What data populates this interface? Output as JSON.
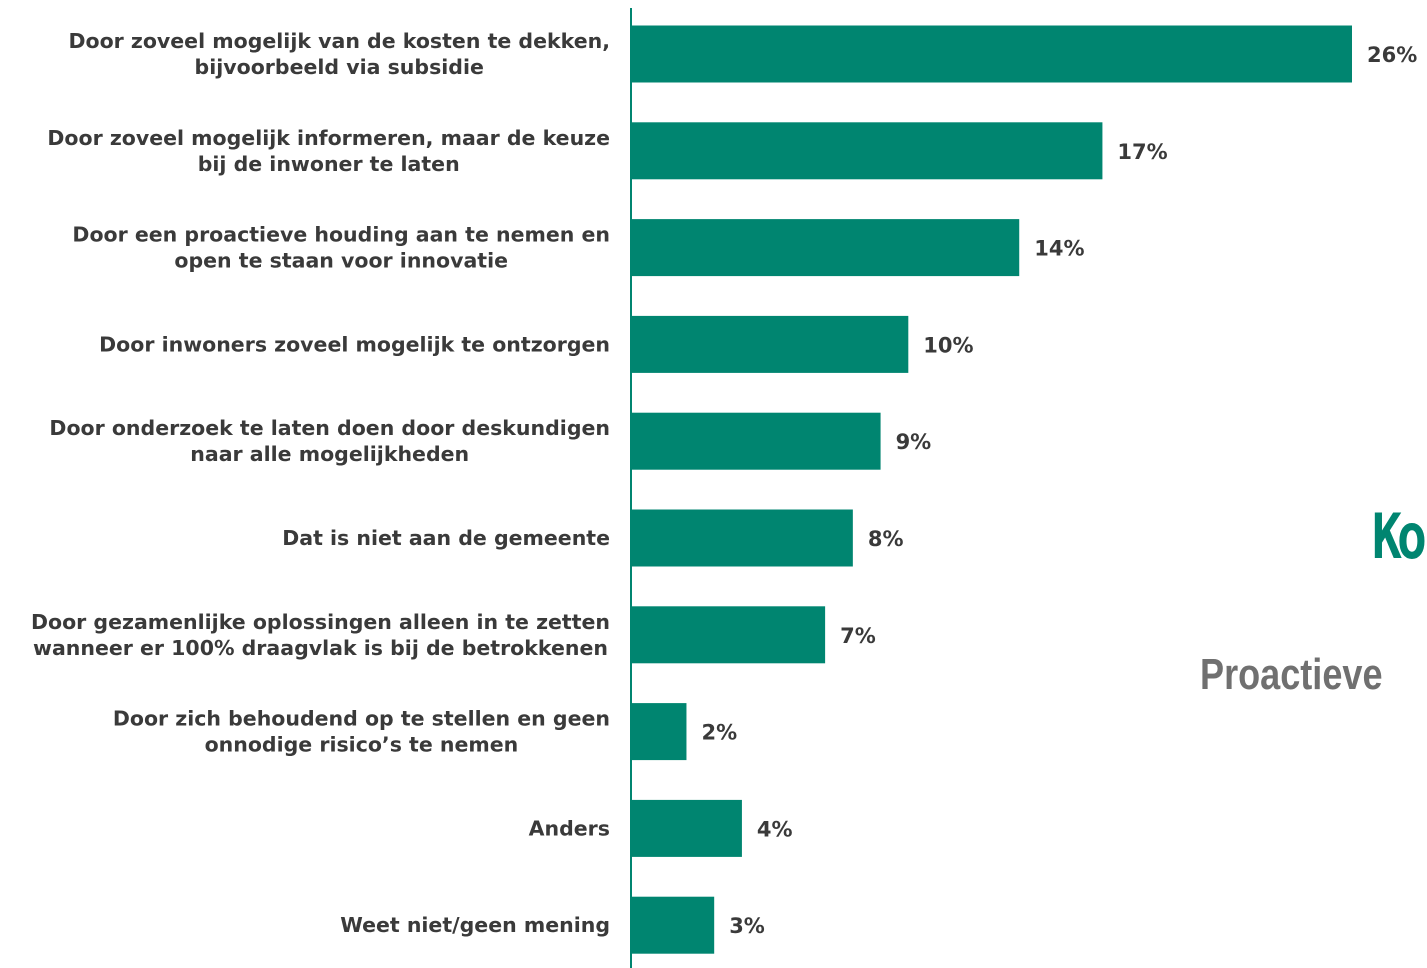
{
  "colors": {
    "bar": "#008570",
    "text": "#3a3a3a",
    "axis": "#008570",
    "side_title": "#008570",
    "side_subtitle": "#707070"
  },
  "side": {
    "title": "Ko",
    "subtitle": "Proactieve"
  },
  "chart_data": {
    "type": "bar",
    "orientation": "horizontal",
    "categories": [
      [
        "Door zoveel mogelijk van de kosten te dekken,",
        "bijvoorbeeld via subsidie"
      ],
      [
        "Door zoveel mogelijk informeren, maar de keuze",
        "bij de inwoner te laten"
      ],
      [
        "Door een proactieve houding aan te nemen en",
        "open te staan voor innovatie"
      ],
      [
        "Door inwoners zoveel mogelijk te ontzorgen"
      ],
      [
        "Door onderzoek te laten doen door deskundigen",
        "naar alle mogelijkheden"
      ],
      [
        "Dat is niet aan de gemeente"
      ],
      [
        "Door gezamenlijke oplossingen alleen in te zetten",
        "wanneer er 100% draagvlak is bij de betrokkenen"
      ],
      [
        "Door zich behoudend op te stellen en geen",
        "onnodige risico’s te nemen"
      ],
      [
        "Anders"
      ],
      [
        "Weet niet/geen mening"
      ]
    ],
    "values": [
      26,
      17,
      14,
      10,
      9,
      8,
      7,
      2,
      4,
      3
    ],
    "value_labels": [
      "26%",
      "17%",
      "14%",
      "10%",
      "9%",
      "8%",
      "7%",
      "2%",
      "4%",
      "3%"
    ],
    "unit": "%",
    "xlim": [
      0,
      27.2
    ],
    "grid": false,
    "legend": "none"
  }
}
